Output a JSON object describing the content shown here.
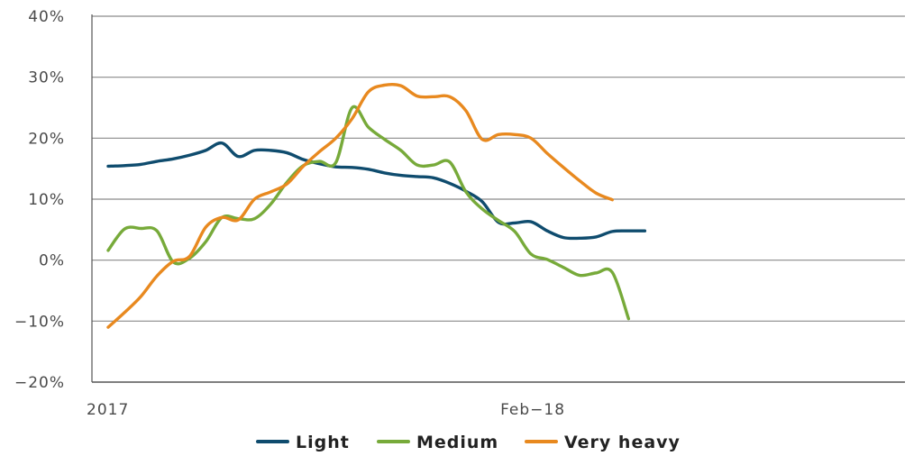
{
  "chart_data": {
    "type": "line",
    "title": "",
    "xlabel": "",
    "ylabel": "",
    "ylim": [
      -20,
      40
    ],
    "yticks": [
      40,
      30,
      20,
      10,
      0,
      -10,
      -20
    ],
    "ytick_labels": [
      "40%",
      "30%",
      "20%",
      "10%",
      "0%",
      "−10%",
      "−20%"
    ],
    "xlim": [
      0,
      24
    ],
    "xtick_positions": [
      0,
      13
    ],
    "xtick_labels": [
      "2017",
      "Feb−18"
    ],
    "grid": true,
    "legend_position": "bottom-center",
    "x": [
      0,
      0.5,
      1,
      1.5,
      2,
      2.5,
      3,
      3.5,
      4,
      4.5,
      5,
      5.5,
      6,
      6.5,
      7,
      7.5,
      8,
      8.5,
      9,
      9.5,
      10,
      10.5,
      11,
      11.5,
      12,
      12.5,
      13,
      13.5,
      14,
      14.5,
      15,
      15.5,
      16,
      16.5,
      17,
      17.5,
      18,
      18.5,
      19,
      19.5,
      20,
      20.5,
      21,
      21.5,
      22,
      22.5,
      23,
      23.5,
      24
    ],
    "series": [
      {
        "name": "Light",
        "color": "#0f4c6e",
        "values": [
          15.4,
          15.5,
          15.7,
          16.2,
          16.6,
          17.2,
          18.0,
          19.2,
          17.0,
          18.0,
          18.0,
          17.6,
          16.5,
          15.8,
          15.3,
          15.2,
          14.9,
          14.3,
          13.9,
          13.7,
          13.5,
          12.6,
          11.3,
          9.6,
          6.2,
          6.1,
          6.3,
          4.8,
          3.7,
          3.6,
          3.8,
          4.7,
          4.8,
          4.8,
          null,
          null,
          null,
          null,
          null,
          null,
          null,
          null,
          null,
          null,
          null,
          null,
          null,
          null,
          null
        ]
      },
      {
        "name": "Medium",
        "color": "#77aa3a",
        "values": [
          1.6,
          5.1,
          5.2,
          4.8,
          -0.3,
          0.3,
          3.0,
          7.0,
          6.8,
          6.8,
          9.2,
          12.8,
          15.5,
          16.2,
          16.0,
          25.0,
          21.8,
          19.8,
          18.0,
          15.6,
          15.6,
          16.1,
          11.2,
          8.4,
          6.5,
          4.7,
          1.0,
          0.1,
          -1.2,
          -2.5,
          -2.1,
          -2.0,
          -9.6,
          null,
          null,
          null,
          null,
          null,
          null,
          null,
          null,
          null,
          null,
          null,
          null,
          null,
          null,
          null,
          null
        ]
      },
      {
        "name": "Very heavy",
        "color": "#e8891f",
        "values": [
          -11.0,
          -8.6,
          -6.0,
          -2.6,
          -0.2,
          0.6,
          5.4,
          7.0,
          6.6,
          10.0,
          11.2,
          12.5,
          15.4,
          17.8,
          20.0,
          23.2,
          27.6,
          28.7,
          28.6,
          26.9,
          26.8,
          26.8,
          24.5,
          19.8,
          20.6,
          20.6,
          20.0,
          17.5,
          15.2,
          13.0,
          11.0,
          9.9,
          null,
          null,
          null,
          null,
          null,
          null,
          null,
          null,
          null,
          null,
          null,
          null,
          null,
          null,
          null,
          null,
          null
        ]
      }
    ]
  }
}
